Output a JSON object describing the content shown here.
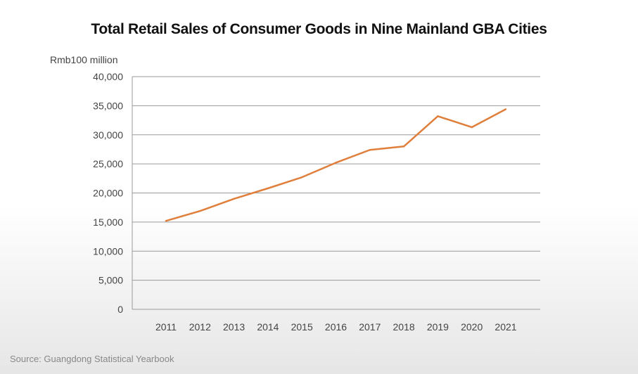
{
  "chart_data": {
    "type": "line",
    "title": "Total Retail Sales of Consumer Goods in Nine Mainland GBA Cities",
    "ylabel": "Rmb100 million",
    "xlabel": "",
    "categories": [
      "2011",
      "2012",
      "2013",
      "2014",
      "2015",
      "2016",
      "2017",
      "2018",
      "2019",
      "2020",
      "2021"
    ],
    "values": [
      15200,
      16900,
      19000,
      20800,
      22700,
      25200,
      27400,
      28000,
      33200,
      31300,
      34400
    ],
    "ylim": [
      0,
      40000
    ],
    "yticks": [
      "0",
      "5,000",
      "10,000",
      "15,000",
      "20,000",
      "25,000",
      "30,000",
      "35,000",
      "40,000"
    ],
    "grid": true,
    "line_color": "#e07f3c",
    "source": "Source: Guangdong Statistical Yearbook"
  }
}
